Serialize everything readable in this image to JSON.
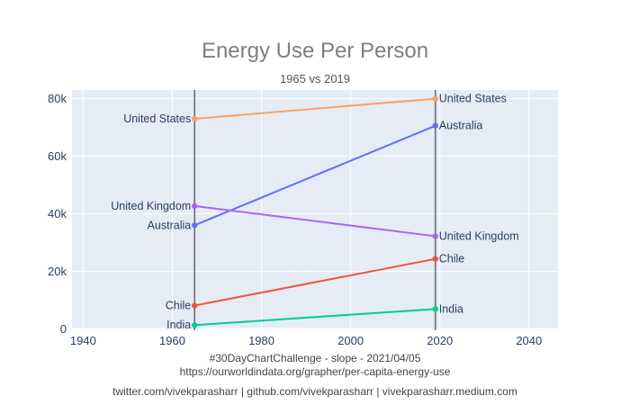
{
  "chart_data": {
    "type": "line",
    "title": "Energy Use Per Person",
    "subtitle": "1965 vs 2019",
    "xlabel": "",
    "ylabel": "",
    "xlim": [
      1937.5,
      2046.5
    ],
    "ylim": [
      -500,
      83000
    ],
    "x_ticks": [
      1940,
      1960,
      1980,
      2000,
      2020,
      2040
    ],
    "x_tick_labels": [
      "1940",
      "1960",
      "1980",
      "2000",
      "2020",
      "2040"
    ],
    "y_ticks": [
      0,
      20000,
      40000,
      60000,
      80000
    ],
    "y_tick_labels": [
      "0",
      "20k",
      "40k",
      "60k",
      "80k"
    ],
    "grid": true,
    "vertical_lines_at": [
      1965,
      2019
    ],
    "x": [
      1965,
      2019
    ],
    "series": [
      {
        "name": "United States",
        "values": [
          73000,
          80000
        ],
        "color": "#FFA15A"
      },
      {
        "name": "Australia",
        "values": [
          36000,
          70600
        ],
        "color": "#636EFA"
      },
      {
        "name": "United Kingdom",
        "values": [
          42700,
          32200
        ],
        "color": "#AB63FA"
      },
      {
        "name": "Chile",
        "values": [
          8100,
          24300
        ],
        "color": "#EF553B"
      },
      {
        "name": "India",
        "values": [
          1300,
          6900
        ],
        "color": "#00CC96"
      }
    ]
  },
  "footer": {
    "line1": "#30DayChartChallenge - slope - 2021/04/05",
    "line2": "https://ourworldindata.org/grapher/per-capita-energy-use",
    "line3": "twitter.com/vivekparasharr | github.com/vivekparasharr | vivekparasharr.medium.com"
  }
}
